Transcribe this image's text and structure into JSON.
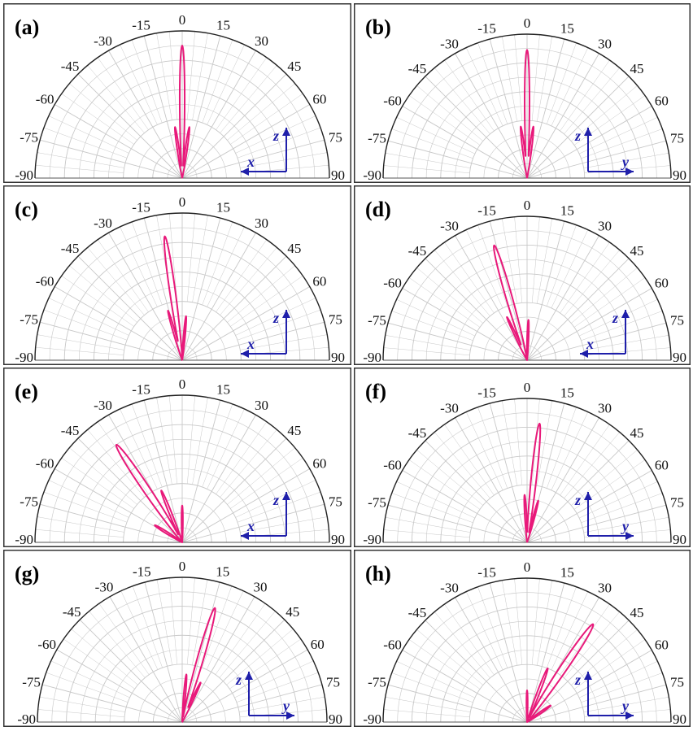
{
  "figure": {
    "tick_angles": [
      "-90",
      "-75",
      "-60",
      "-45",
      "-30",
      "-15",
      "0",
      "15",
      "30",
      "45",
      "60",
      "75",
      "90"
    ],
    "colors": {
      "pattern": "#e8197a",
      "axes": "#1f1faa",
      "grid": "#c8c8c8",
      "frame": "#333333"
    }
  },
  "chart_data": [
    {
      "type": "polar-line",
      "panel_label": "(a)",
      "axis_labels": {
        "horizontal": "x",
        "vertical": "z"
      },
      "horizontal_arrow": "left",
      "angle_range": [
        -90,
        90
      ],
      "lobes": [
        {
          "center_deg": 0,
          "peak": 0.9,
          "half_width_deg": 2.5
        },
        {
          "center_deg": -8,
          "peak": 0.35,
          "half_width_deg": 2.5
        },
        {
          "center_deg": 8,
          "peak": 0.35,
          "half_width_deg": 2.5
        }
      ]
    },
    {
      "type": "polar-line",
      "panel_label": "(b)",
      "axis_labels": {
        "horizontal": "y",
        "vertical": "z"
      },
      "horizontal_arrow": "right",
      "angle_range": [
        -90,
        90
      ],
      "lobes": [
        {
          "center_deg": 0,
          "peak": 0.89,
          "half_width_deg": 2.5
        },
        {
          "center_deg": -7,
          "peak": 0.36,
          "half_width_deg": 2.5
        },
        {
          "center_deg": 7,
          "peak": 0.36,
          "half_width_deg": 2.5
        }
      ]
    },
    {
      "type": "polar-line",
      "panel_label": "(c)",
      "axis_labels": {
        "horizontal": "x",
        "vertical": "z"
      },
      "horizontal_arrow": "left",
      "angle_range": [
        -90,
        90
      ],
      "lobes": [
        {
          "center_deg": -8,
          "peak": 0.85,
          "half_width_deg": 3
        },
        {
          "center_deg": -16,
          "peak": 0.35,
          "half_width_deg": 2.5
        },
        {
          "center_deg": 5,
          "peak": 0.3,
          "half_width_deg": 2.5
        }
      ]
    },
    {
      "type": "polar-line",
      "panel_label": "(d)",
      "axis_labels": {
        "horizontal": "x",
        "vertical": "z"
      },
      "horizontal_arrow": "left",
      "angle_range": [
        -90,
        90
      ],
      "lobes": [
        {
          "center_deg": -16,
          "peak": 0.83,
          "half_width_deg": 3.5
        },
        {
          "center_deg": -25,
          "peak": 0.33,
          "half_width_deg": 2.5
        },
        {
          "center_deg": 2,
          "peak": 0.28,
          "half_width_deg": 2.5
        }
      ]
    },
    {
      "type": "polar-line",
      "panel_label": "(e)",
      "axis_labels": {
        "horizontal": "x",
        "vertical": "z"
      },
      "horizontal_arrow": "left",
      "angle_range": [
        -90,
        90
      ],
      "lobes": [
        {
          "center_deg": -34,
          "peak": 0.8,
          "half_width_deg": 4
        },
        {
          "center_deg": -22,
          "peak": 0.38,
          "half_width_deg": 3
        },
        {
          "center_deg": -58,
          "peak": 0.22,
          "half_width_deg": 4
        },
        {
          "center_deg": 0,
          "peak": 0.25,
          "half_width_deg": 2.5
        }
      ]
    },
    {
      "type": "polar-line",
      "panel_label": "(f)",
      "axis_labels": {
        "horizontal": "y",
        "vertical": "z"
      },
      "horizontal_arrow": "right",
      "angle_range": [
        -90,
        90
      ],
      "lobes": [
        {
          "center_deg": 6,
          "peak": 0.83,
          "half_width_deg": 3
        },
        {
          "center_deg": -3,
          "peak": 0.33,
          "half_width_deg": 2.5
        },
        {
          "center_deg": 15,
          "peak": 0.3,
          "half_width_deg": 2.5
        }
      ]
    },
    {
      "type": "polar-line",
      "panel_label": "(g)",
      "axis_labels": {
        "horizontal": "y",
        "vertical": "z"
      },
      "horizontal_arrow": "right",
      "angle_range": [
        -90,
        90
      ],
      "lobes": [
        {
          "center_deg": 16,
          "peak": 0.82,
          "half_width_deg": 3.5
        },
        {
          "center_deg": 5,
          "peak": 0.33,
          "half_width_deg": 2.5
        },
        {
          "center_deg": 25,
          "peak": 0.3,
          "half_width_deg": 2.5
        }
      ]
    },
    {
      "type": "polar-line",
      "panel_label": "(h)",
      "axis_labels": {
        "horizontal": "y",
        "vertical": "z"
      },
      "horizontal_arrow": "right",
      "angle_range": [
        -90,
        90
      ],
      "lobes": [
        {
          "center_deg": 34,
          "peak": 0.82,
          "half_width_deg": 4
        },
        {
          "center_deg": 21,
          "peak": 0.4,
          "half_width_deg": 3
        },
        {
          "center_deg": 55,
          "peak": 0.2,
          "half_width_deg": 4
        },
        {
          "center_deg": 0,
          "peak": 0.22,
          "half_width_deg": 2.5
        }
      ]
    }
  ]
}
